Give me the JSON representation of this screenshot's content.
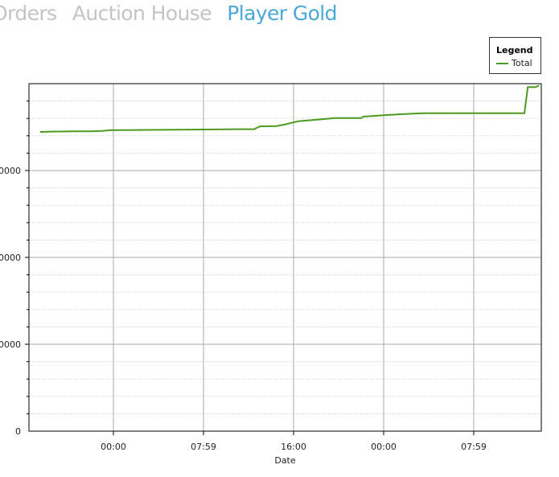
{
  "tabs": [
    {
      "label": "Orders",
      "active": false
    },
    {
      "label": "Auction House",
      "active": false
    },
    {
      "label": "Player Gold",
      "active": true
    }
  ],
  "legend": {
    "title": "Legend",
    "entries": [
      "Total"
    ]
  },
  "colors": {
    "series": "#4e9a1e",
    "active_tab": "#4aa8d8",
    "inactive_tab": "#c4c4c4"
  },
  "chart_data": {
    "type": "line",
    "xlabel": "Date",
    "ylabel": "",
    "x_tick_labels": [
      "00:00",
      "07:59",
      "16:00",
      "00:00",
      "07:59"
    ],
    "y_tick_labels": [
      "0",
      "0000",
      "0000",
      "0000"
    ],
    "grid": true,
    "legend_position": "top-right",
    "series": [
      {
        "name": "Total",
        "color": "#4e9a1e",
        "points": [
          {
            "t": -6.5,
            "y": 0.861
          },
          {
            "t": -5.5,
            "y": 0.862
          },
          {
            "t": -3.5,
            "y": 0.863
          },
          {
            "t": -2.0,
            "y": 0.863
          },
          {
            "t": -1.0,
            "y": 0.864
          },
          {
            "t": -0.3,
            "y": 0.866
          },
          {
            "t": 3.0,
            "y": 0.867
          },
          {
            "t": 7.98,
            "y": 0.868
          },
          {
            "t": 11.0,
            "y": 0.869
          },
          {
            "t": 12.5,
            "y": 0.869
          },
          {
            "t": 13.0,
            "y": 0.877
          },
          {
            "t": 14.5,
            "y": 0.878
          },
          {
            "t": 15.3,
            "y": 0.883
          },
          {
            "t": 16.4,
            "y": 0.892
          },
          {
            "t": 18.0,
            "y": 0.896
          },
          {
            "t": 19.7,
            "y": 0.901
          },
          {
            "t": 22.0,
            "y": 0.901
          },
          {
            "t": 22.2,
            "y": 0.905
          },
          {
            "t": 23.5,
            "y": 0.908
          },
          {
            "t": 24.0,
            "y": 0.909
          },
          {
            "t": 25.5,
            "y": 0.912
          },
          {
            "t": 27.5,
            "y": 0.915
          },
          {
            "t": 33.3,
            "y": 0.915
          },
          {
            "t": 36.5,
            "y": 0.915
          },
          {
            "t": 36.8,
            "y": 0.99
          },
          {
            "t": 37.5,
            "y": 0.99
          },
          {
            "t": 37.8,
            "y": 0.995
          }
        ]
      }
    ]
  }
}
